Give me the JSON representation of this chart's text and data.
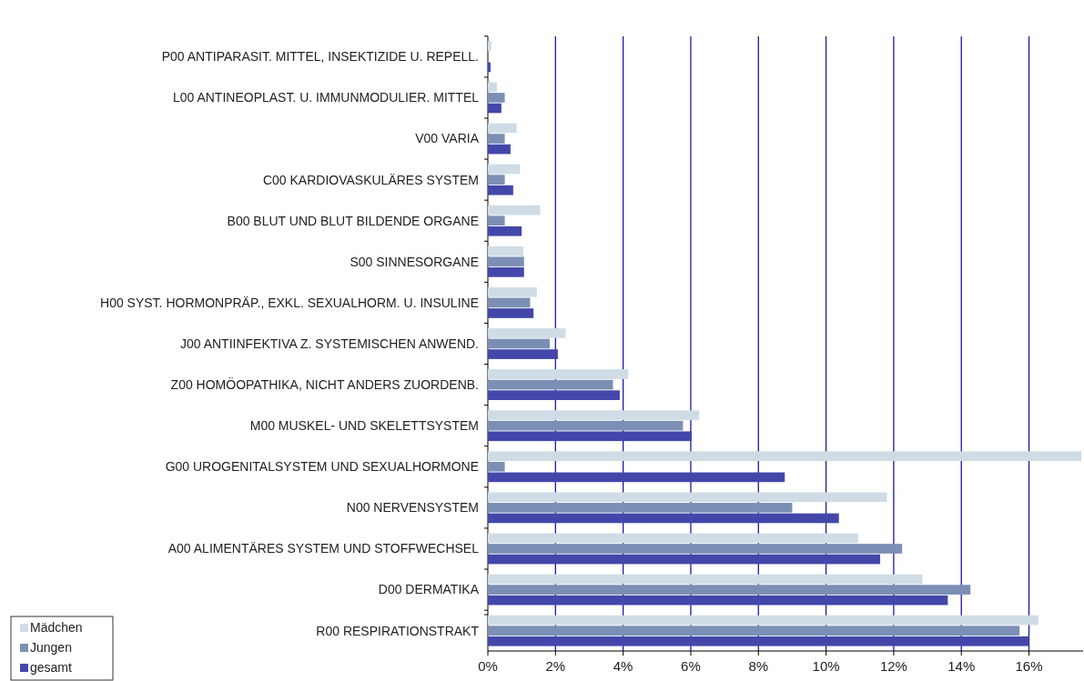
{
  "chart_data": {
    "type": "bar",
    "orientation": "horizontal",
    "categories": [
      "P00 ANTIPARASIT. MITTEL, INSEKTIZIDE U. REPELL.",
      "L00 ANTINEOPLAST. U. IMMUNMODULIER. MITTEL",
      "V00 VARIA",
      "C00 KARDIOVASKULÄRES SYSTEM",
      "B00 BLUT UND BLUT BILDENDE ORGANE",
      "S00 SINNESORGANE",
      "H00 SYST. HORMONPRÄP., EXKL. SEXUALHORM. U. INSULINE",
      "J00 ANTIINFEKTIVA Z. SYSTEMISCHEN ANWEND.",
      "Z00 HOMÖOPATHIKA, NICHT ANDERS ZUORDENB.",
      "M00 MUSKEL- UND SKELETTSYSTEM",
      "G00 UROGENITALSYSTEM UND SEXUALHORMONE",
      "N00 NERVENSYSTEM",
      "A00 ALIMENTÄRES SYSTEM UND STOFFWECHSEL",
      "D00 DERMATIKA",
      "R00 RESPIRATIONSTRAKT"
    ],
    "series": [
      {
        "name": "Mädchen",
        "color": "#cfdce6",
        "values": [
          0.1,
          0.27,
          0.85,
          0.95,
          1.55,
          1.05,
          1.45,
          2.3,
          4.15,
          6.25,
          17.55,
          11.8,
          10.95,
          12.85,
          16.28
        ]
      },
      {
        "name": "Jungen",
        "color": "#7b8fb5",
        "values": [
          0,
          0.5,
          0.5,
          0.5,
          0.5,
          1.07,
          1.25,
          1.83,
          3.7,
          5.77,
          0.5,
          9.0,
          12.25,
          14.27,
          15.72
        ]
      },
      {
        "name": "gesamt",
        "color": "#4347aa",
        "values": [
          0.08,
          0.4,
          0.67,
          0.75,
          1.0,
          1.07,
          1.35,
          2.07,
          3.9,
          6.03,
          8.78,
          10.38,
          11.6,
          13.6,
          16.0
        ]
      }
    ],
    "xlim": [
      0,
      17.6
    ],
    "xticks": [
      {
        "value": 0,
        "label": "0%"
      },
      {
        "value": 2,
        "label": "2%"
      },
      {
        "value": 4,
        "label": "4%"
      },
      {
        "value": 6,
        "label": "6%"
      },
      {
        "value": 8,
        "label": "8%"
      },
      {
        "value": 10,
        "label": "10%"
      },
      {
        "value": 12,
        "label": "12%"
      },
      {
        "value": 14,
        "label": "14%"
      },
      {
        "value": 16,
        "label": "16%"
      }
    ],
    "grid": "x",
    "legend": "bottom left"
  }
}
